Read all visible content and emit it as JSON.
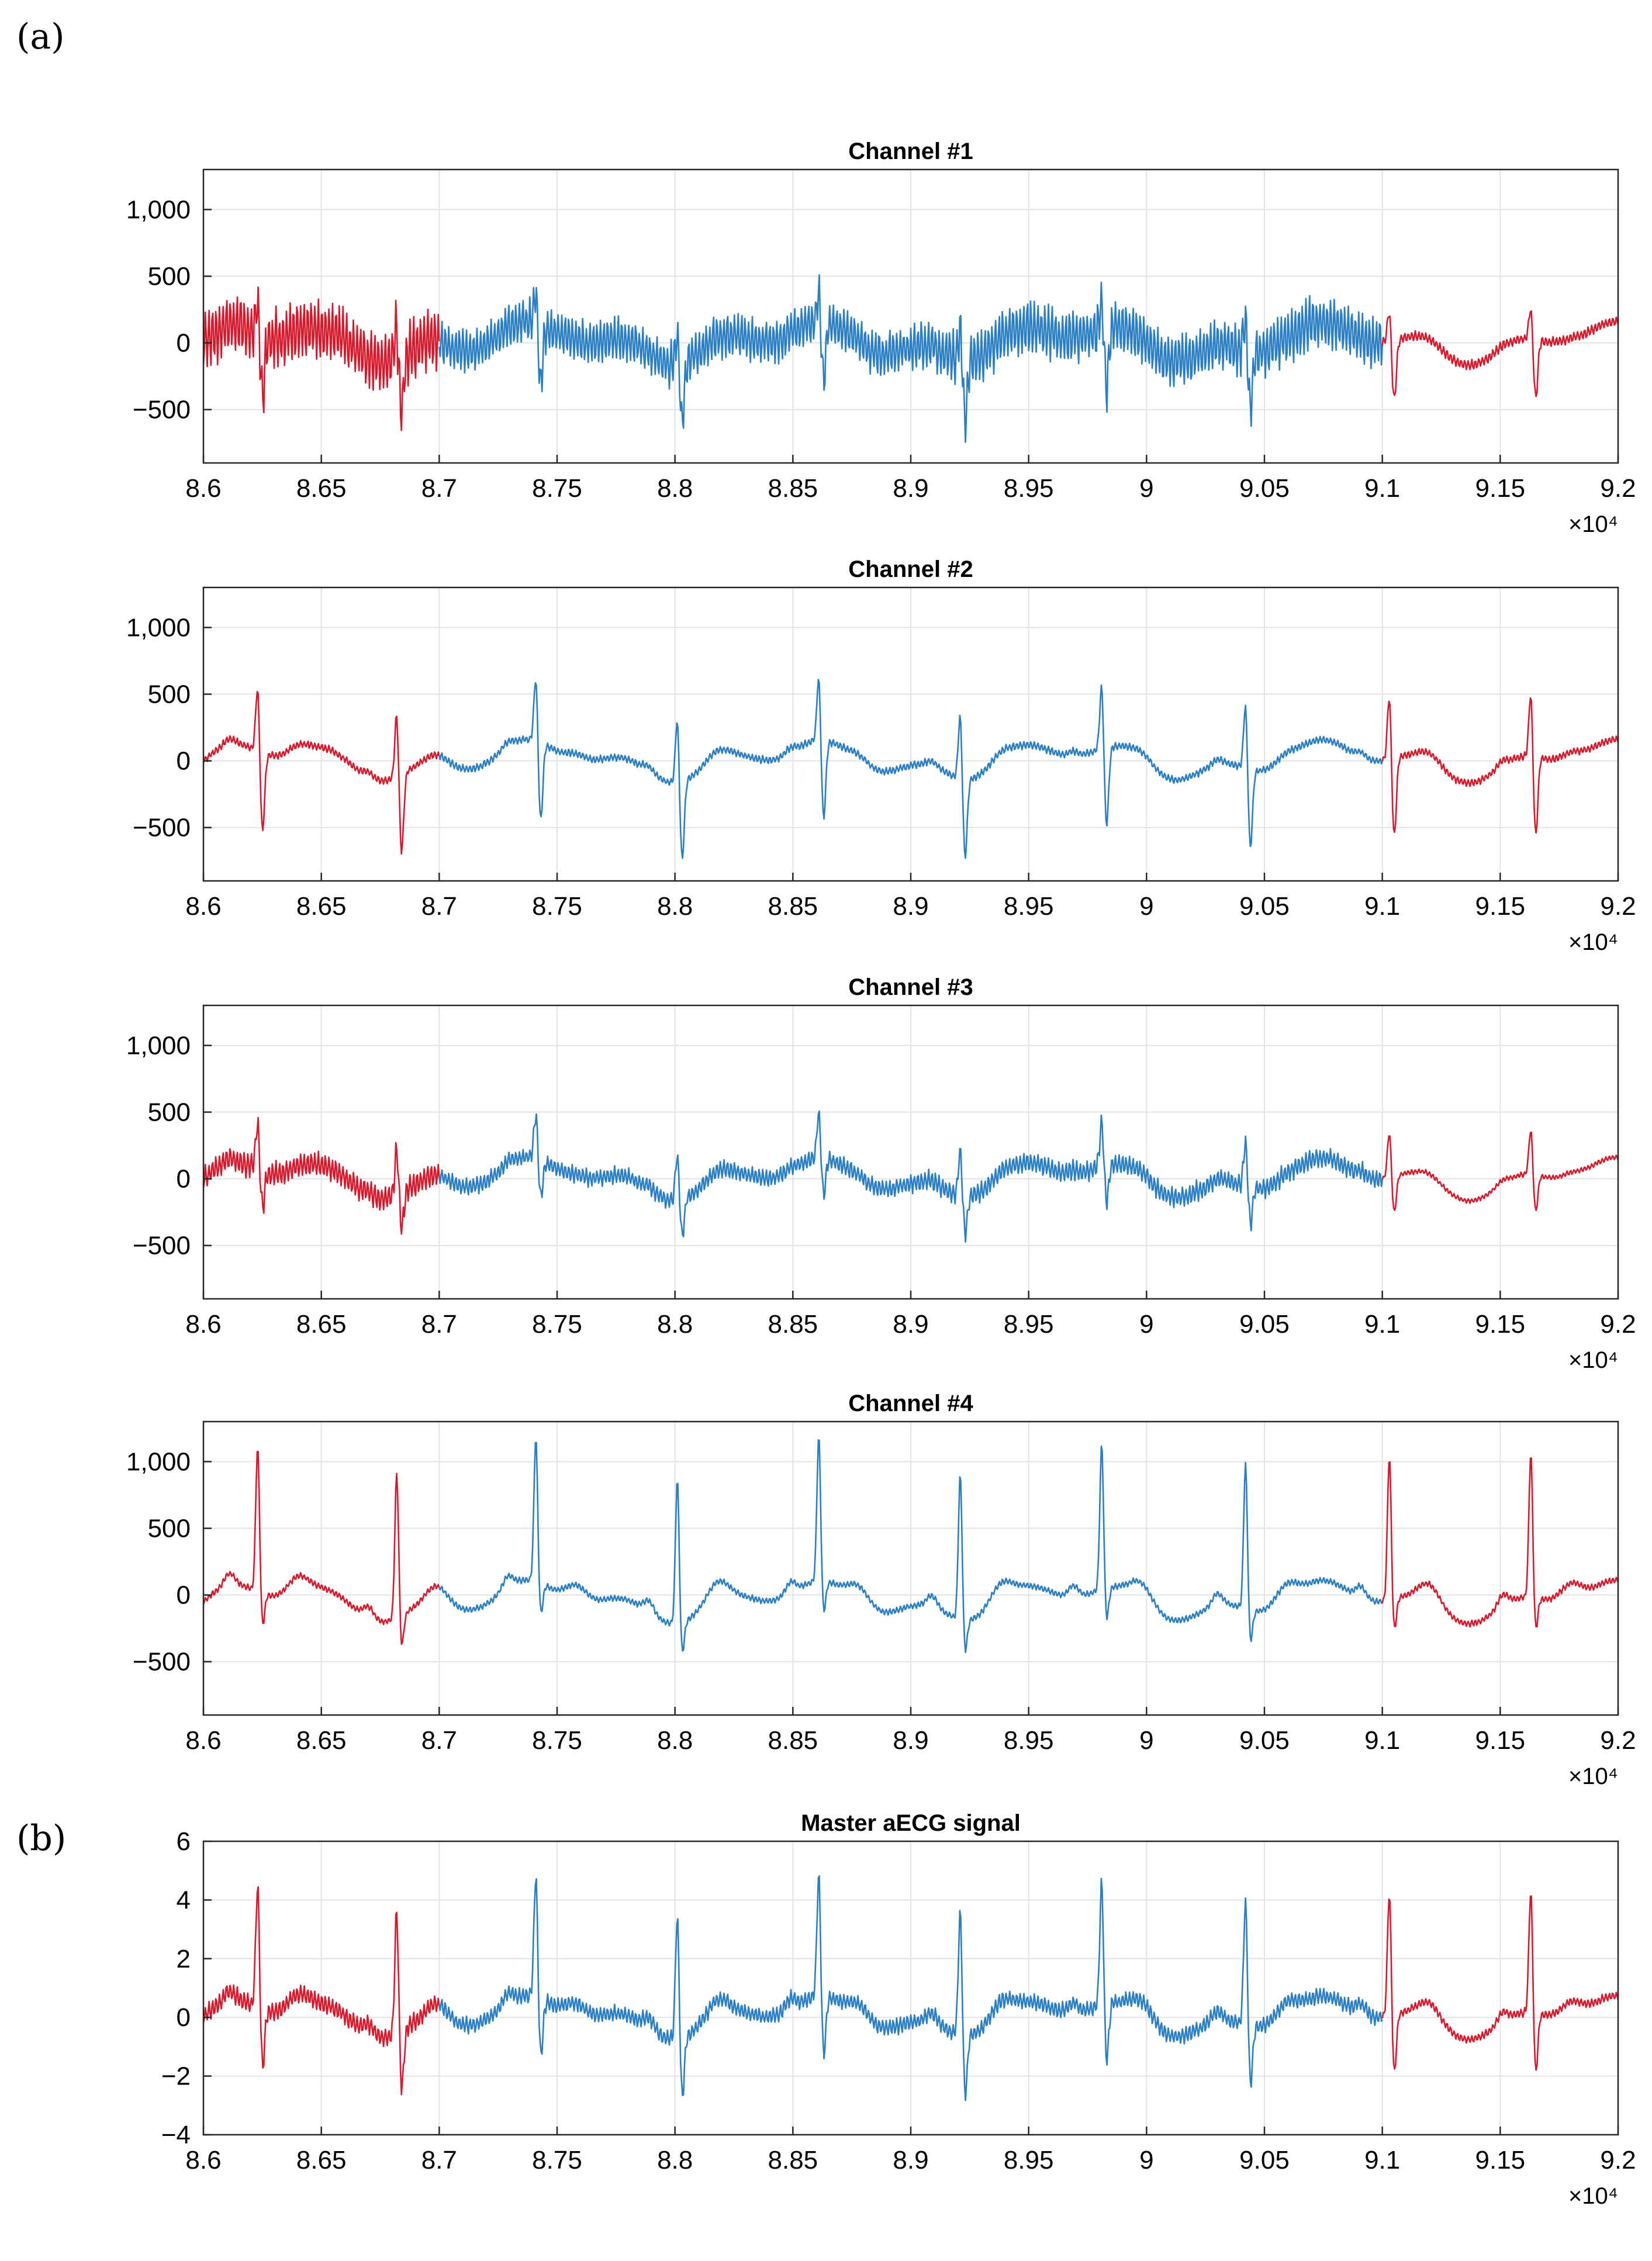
{
  "panel_labels": {
    "a": "(a)",
    "b": "(b)"
  },
  "colors": {
    "segment_edge": "#d7192b",
    "segment_mid": "#2a7fc4",
    "axis": "#262626",
    "grid": "#e3e3e3"
  },
  "chart_data": [
    {
      "type": "line",
      "title": "Channel #1",
      "xlim": [
        86000,
        92000
      ],
      "ylim": [
        -900,
        1300
      ],
      "x_ticks": [
        86000,
        86500,
        87000,
        87500,
        88000,
        88500,
        89000,
        89500,
        90000,
        90500,
        91000,
        91500,
        92000
      ],
      "x_tick_labels": [
        "8.6",
        "8.65",
        "8.7",
        "8.75",
        "8.8",
        "8.85",
        "8.9",
        "8.95",
        "9",
        "9.05",
        "9.1",
        "9.15",
        "9.2"
      ],
      "y_ticks": [
        -500,
        0,
        500,
        1000
      ],
      "y_tick_labels": [
        "−500",
        "0",
        "500",
        "1,000"
      ],
      "x_exponent": "×10⁴",
      "series": [
        {
          "x_range": [
            86000,
            87000
          ],
          "color": "#d7192b"
        },
        {
          "x_range": [
            87000,
            91000
          ],
          "color": "#2a7fc4"
        },
        {
          "x_range": [
            91000,
            92000
          ],
          "color": "#d7192b"
        }
      ],
      "r_peaks": [
        86230,
        86820,
        87410,
        88010,
        88610,
        89210,
        89810,
        90420,
        91030,
        91630
      ],
      "peak_amplitude": 250,
      "peak_dip": -450,
      "baseline": 0,
      "noise_amplitude": [
        250,
        180,
        220,
        40
      ]
    },
    {
      "type": "line",
      "title": "Channel #2",
      "xlim": [
        86000,
        92000
      ],
      "ylim": [
        -900,
        1300
      ],
      "x_ticks": [
        86000,
        86500,
        87000,
        87500,
        88000,
        88500,
        89000,
        89500,
        90000,
        90500,
        91000,
        91500,
        92000
      ],
      "x_tick_labels": [
        "8.6",
        "8.65",
        "8.7",
        "8.75",
        "8.8",
        "8.85",
        "8.9",
        "8.95",
        "9",
        "9.05",
        "9.1",
        "9.15",
        "9.2"
      ],
      "y_ticks": [
        -500,
        0,
        500,
        1000
      ],
      "y_tick_labels": [
        "−500",
        "0",
        "500",
        "1,000"
      ],
      "x_exponent": "×10⁴",
      "series": [
        {
          "x_range": [
            86000,
            87000
          ],
          "color": "#d7192b"
        },
        {
          "x_range": [
            87000,
            91000
          ],
          "color": "#2a7fc4"
        },
        {
          "x_range": [
            91000,
            92000
          ],
          "color": "#d7192b"
        }
      ],
      "r_peaks": [
        86230,
        86820,
        87410,
        88010,
        88610,
        89210,
        89810,
        90420,
        91030,
        91630
      ],
      "peak_amplitude": 500,
      "peak_dip": -600,
      "baseline": 0,
      "noise_amplitude": [
        30,
        30,
        30,
        30
      ]
    },
    {
      "type": "line",
      "title": "Channel #3",
      "xlim": [
        86000,
        92000
      ],
      "ylim": [
        -900,
        1300
      ],
      "x_ticks": [
        86000,
        86500,
        87000,
        87500,
        88000,
        88500,
        89000,
        89500,
        90000,
        90500,
        91000,
        91500,
        92000
      ],
      "x_tick_labels": [
        "8.6",
        "8.65",
        "8.7",
        "8.75",
        "8.8",
        "8.85",
        "8.9",
        "8.95",
        "9",
        "9.05",
        "9.1",
        "9.15",
        "9.2"
      ],
      "y_ticks": [
        -500,
        0,
        500,
        1000
      ],
      "y_tick_labels": [
        "−500",
        "0",
        "500",
        "1,000"
      ],
      "x_exponent": "×10⁴",
      "series": [
        {
          "x_range": [
            86000,
            87000
          ],
          "color": "#d7192b"
        },
        {
          "x_range": [
            87000,
            91000
          ],
          "color": "#2a7fc4"
        },
        {
          "x_range": [
            91000,
            92000
          ],
          "color": "#d7192b"
        }
      ],
      "r_peaks": [
        86230,
        86820,
        87410,
        88010,
        88610,
        89210,
        89810,
        90420,
        91030,
        91630
      ],
      "peak_amplitude": 350,
      "peak_dip": -280,
      "baseline": 0,
      "noise_amplitude": [
        100,
        70,
        80,
        20
      ]
    },
    {
      "type": "line",
      "title": "Channel #4",
      "xlim": [
        86000,
        92000
      ],
      "ylim": [
        -900,
        1300
      ],
      "x_ticks": [
        86000,
        86500,
        87000,
        87500,
        88000,
        88500,
        89000,
        89500,
        90000,
        90500,
        91000,
        91500,
        92000
      ],
      "x_tick_labels": [
        "8.6",
        "8.65",
        "8.7",
        "8.75",
        "8.8",
        "8.85",
        "8.9",
        "8.95",
        "9",
        "9.05",
        "9.1",
        "9.15",
        "9.2"
      ],
      "y_ticks": [
        -500,
        0,
        500,
        1000
      ],
      "y_tick_labels": [
        "−500",
        "0",
        "500",
        "1,000"
      ],
      "x_exponent": "×10⁴",
      "series": [
        {
          "x_range": [
            86000,
            87000
          ],
          "color": "#d7192b"
        },
        {
          "x_range": [
            87000,
            91000
          ],
          "color": "#2a7fc4"
        },
        {
          "x_range": [
            91000,
            92000
          ],
          "color": "#d7192b"
        }
      ],
      "r_peaks": [
        86230,
        86820,
        87410,
        88010,
        88610,
        89210,
        89810,
        90420,
        91030,
        91630
      ],
      "peak_amplitude": 1100,
      "peak_dip": -250,
      "baseline": -50,
      "noise_amplitude": [
        25,
        25,
        25,
        25
      ]
    },
    {
      "type": "line",
      "title": "Master aECG signal",
      "xlim": [
        86000,
        92000
      ],
      "ylim": [
        -4,
        6
      ],
      "x_ticks": [
        86000,
        86500,
        87000,
        87500,
        88000,
        88500,
        89000,
        89500,
        90000,
        90500,
        91000,
        91500,
        92000
      ],
      "x_tick_labels": [
        "8.6",
        "8.65",
        "8.7",
        "8.75",
        "8.8",
        "8.85",
        "8.9",
        "8.95",
        "9",
        "9.05",
        "9.1",
        "9.15",
        "9.2"
      ],
      "y_ticks": [
        -4,
        -2,
        0,
        2,
        4,
        6
      ],
      "y_tick_labels": [
        "−4",
        "−2",
        "0",
        "2",
        "4",
        "6"
      ],
      "x_exponent": "×10⁴",
      "series": [
        {
          "x_range": [
            86000,
            87000
          ],
          "color": "#d7192b"
        },
        {
          "x_range": [
            87000,
            91000
          ],
          "color": "#2a7fc4"
        },
        {
          "x_range": [
            91000,
            92000
          ],
          "color": "#d7192b"
        }
      ],
      "r_peaks": [
        86230,
        86820,
        87410,
        88010,
        88610,
        89210,
        89810,
        90420,
        91030,
        91630
      ],
      "peak_amplitude": 4.3,
      "peak_dip": -2.1,
      "baseline": 0,
      "noise_amplitude": [
        0.35,
        0.3,
        0.3,
        0.15
      ]
    }
  ]
}
